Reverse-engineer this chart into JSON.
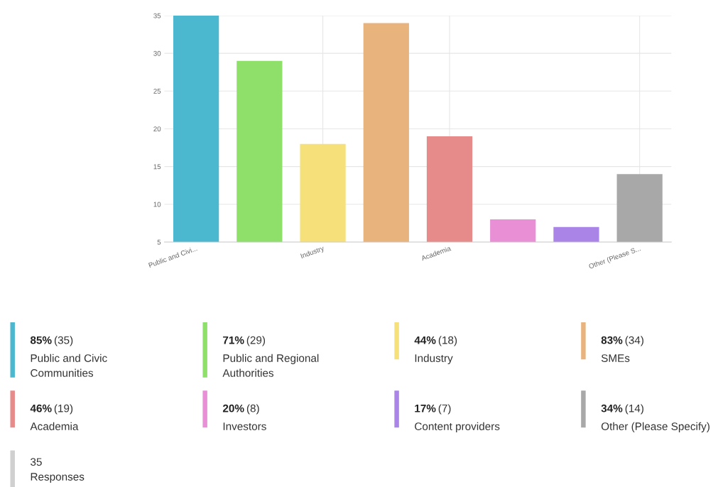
{
  "chart_data": [
    {
      "type": "bar",
      "categories": [
        "Public and Civi...",
        null,
        "Industry",
        null,
        "Academia",
        null,
        null,
        "Other (Please S..."
      ],
      "values": [
        35,
        29,
        18,
        34,
        19,
        8,
        7,
        14
      ],
      "colors": [
        "#4cb8cf",
        "#8ee06a",
        "#f5e07a",
        "#e9b37e",
        "#e68a8a",
        "#e88fd6",
        "#ab84e8",
        "#a8a8a8"
      ],
      "ylim": [
        5,
        35
      ],
      "yticks": [
        5,
        10,
        15,
        20,
        25,
        30,
        35
      ],
      "grid": true
    },
    {
      "type": "other",
      "annotations": [
        "85%",
        "(35)",
        "Public and Civic Communities",
        "71%",
        "(29)",
        "Public and Regional Authorities",
        "44%",
        "(18)",
        "Industry",
        "83%",
        "(34)",
        "SMEs",
        "46%",
        "(19)",
        "Academia",
        "20%",
        "(8)",
        "Investors",
        "17%",
        "(7)",
        "Content providers",
        "34%",
        "(14)",
        "Other (Please Specify)",
        "35",
        "Responses"
      ]
    }
  ]
}
